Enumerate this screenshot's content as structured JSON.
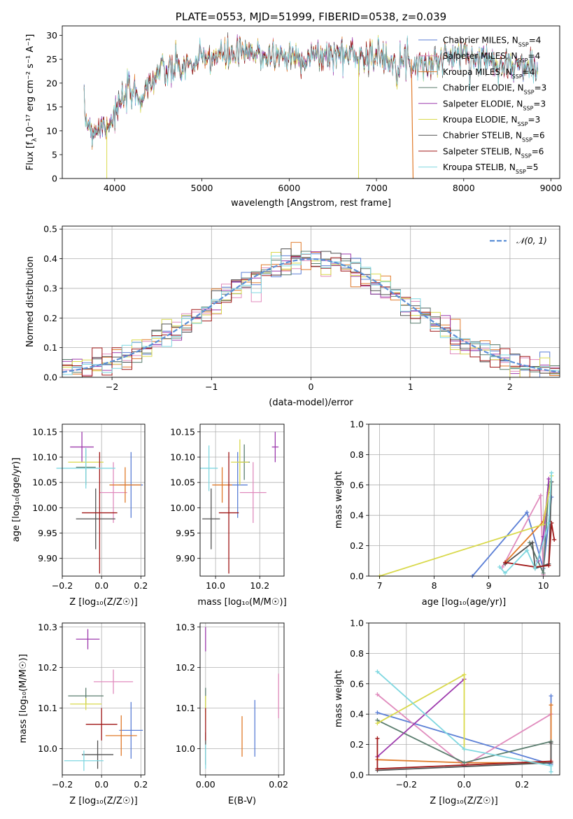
{
  "colors": [
    "#5b7fd6",
    "#e08bbd",
    "#e07a2a",
    "#5a7d6e",
    "#9d3aad",
    "#d9d94c",
    "#505050",
    "#a01818",
    "#7fd7e0"
  ],
  "spectrum": {
    "title": "PLATE=0553, MJD=51999, FIBERID=0538, z=0.039",
    "xlabel": "wavelength [Angstrom, rest frame]",
    "ylabel": "Flux [f",
    "ylabel_units": "10⁻¹⁷ erg cm⁻² s⁻¹ A⁻¹]",
    "legend": [
      "Chabrier MILES, N",
      "Salpeter MILES, N",
      "Kroupa MILES, N",
      "Chabrier ELODIE, N",
      "Salpeter ELODIE, N",
      "Kroupa ELODIE, N",
      "Chabrier STELIB, N",
      "Salpeter STELIB, N",
      "Kroupa STELIB, N"
    ],
    "legend_nssp": [
      "=4",
      "=4",
      "=4",
      "=3",
      "=3",
      "=3",
      "=6",
      "=6",
      "=5"
    ]
  },
  "residuals": {
    "xlabel": "(data-model)/error",
    "ylabel": "Normed distribution",
    "legend": "𝒩(0, 1)"
  },
  "panels": {
    "age_label": "age  [log₁₀(age/yr)]",
    "z_label": "Z [log₁₀(Z/Z☉)]",
    "mass_label": "mass [log₁₀(M/M☉)]",
    "mass_weight_label": "mass weight",
    "ebv_label": "E(B-V)"
  },
  "chart_data": [
    {
      "type": "line",
      "title": "PLATE=0553, MJD=51999, FIBERID=0538, z=0.039",
      "xlabel": "wavelength [Angstrom, rest frame]",
      "ylabel": "Flux [fλ 10^-17 erg cm^-2 s^-1 A^-1]",
      "xlim": [
        3400,
        9100
      ],
      "ylim": [
        0,
        32
      ],
      "xticks": [
        4000,
        5000,
        6000,
        7000,
        8000,
        9000
      ],
      "yticks": [
        0,
        5,
        10,
        15,
        20,
        25,
        30
      ],
      "continuum": [
        [
          3650,
          13
        ],
        [
          3750,
          10
        ],
        [
          3850,
          11
        ],
        [
          3950,
          12
        ],
        [
          4050,
          15
        ],
        [
          4150,
          18
        ],
        [
          4300,
          17
        ],
        [
          4400,
          20
        ],
        [
          4500,
          22
        ],
        [
          4700,
          23
        ],
        [
          4900,
          24
        ],
        [
          5100,
          25.5
        ],
        [
          5400,
          26
        ],
        [
          5700,
          26
        ],
        [
          6000,
          25.5
        ],
        [
          6300,
          25.5
        ],
        [
          6500,
          26
        ],
        [
          6800,
          26
        ],
        [
          7000,
          25.5
        ],
        [
          7200,
          25
        ],
        [
          7400,
          24.5
        ],
        [
          7600,
          24
        ],
        [
          7800,
          25.5
        ],
        [
          8000,
          26
        ],
        [
          8200,
          25
        ],
        [
          8400,
          24.5
        ],
        [
          8600,
          23.5
        ],
        [
          8800,
          23.5
        ]
      ],
      "legend_position": "top-right"
    },
    {
      "type": "histogram",
      "xlabel": "(data-model)/error",
      "ylabel": "Normed distribution",
      "xlim": [
        -2.5,
        2.5
      ],
      "ylim": [
        0,
        0.51
      ],
      "xticks": [
        -2,
        -1,
        0,
        1,
        2
      ],
      "yticks": [
        0,
        0.1,
        0.2,
        0.3,
        0.4,
        0.5
      ],
      "bin_width": 0.1,
      "reference_curve": "N(0,1)",
      "legend_position": "top-right"
    },
    {
      "type": "scatter",
      "xlabel": "Z [log10(Z/Zsun)]",
      "ylabel": "age [log10(age/yr)]",
      "xlim": [
        -0.2,
        0.22
      ],
      "ylim": [
        9.865,
        10.165
      ],
      "xticks": [
        -0.2,
        0.0,
        0.2
      ],
      "yticks": [
        9.9,
        9.95,
        10.0,
        10.05,
        10.1,
        10.15
      ],
      "points": [
        {
          "x": 0.15,
          "y": 10.045,
          "xerr": 0.06,
          "yerr": 0.065
        },
        {
          "x": 0.06,
          "y": 10.03,
          "xerr": 0.07,
          "yerr": 0.06
        },
        {
          "x": 0.12,
          "y": 10.045,
          "xerr": 0.08,
          "yerr": 0.035
        },
        {
          "x": -0.08,
          "y": 10.08,
          "xerr": 0.05,
          "yerr": 0.035
        },
        {
          "x": -0.1,
          "y": 10.12,
          "xerr": 0.06,
          "yerr": 0.03
        },
        {
          "x": -0.08,
          "y": 10.09,
          "xerr": 0.09,
          "yerr": 0.01
        },
        {
          "x": -0.03,
          "y": 9.978,
          "xerr": 0.1,
          "yerr": 0.06
        },
        {
          "x": -0.01,
          "y": 9.99,
          "xerr": 0.09,
          "yerr": 0.12
        },
        {
          "x": -0.08,
          "y": 10.078,
          "xerr": 0.15,
          "yerr": 0.04
        }
      ]
    },
    {
      "type": "scatter",
      "xlabel": "mass [log10(M/Msun)]",
      "ylabel": "",
      "xlim": [
        9.93,
        10.31
      ],
      "ylim": [
        9.865,
        10.165
      ],
      "xticks": [
        10.0,
        10.2
      ],
      "points": [
        {
          "x": 10.1,
          "y": 10.045,
          "xerr": 0.045,
          "yerr": 0.065
        },
        {
          "x": 10.17,
          "y": 10.03,
          "xerr": 0.06,
          "yerr": 0.06
        },
        {
          "x": 10.03,
          "y": 10.045,
          "xerr": 0.045,
          "yerr": 0.035
        },
        {
          "x": 10.13,
          "y": 10.09,
          "xerr": 0.025,
          "yerr": 0.035
        },
        {
          "x": 10.27,
          "y": 10.12,
          "xerr": 0.015,
          "yerr": 0.03
        },
        {
          "x": 10.11,
          "y": 10.09,
          "xerr": 0.04,
          "yerr": 0.045
        },
        {
          "x": 9.98,
          "y": 9.978,
          "xerr": 0.04,
          "yerr": 0.06
        },
        {
          "x": 10.06,
          "y": 9.99,
          "xerr": 0.045,
          "yerr": 0.12
        },
        {
          "x": 9.97,
          "y": 10.078,
          "xerr": 0.04,
          "yerr": 0.045
        }
      ]
    },
    {
      "type": "line",
      "xlabel": "age [log10(age/yr)]",
      "ylabel": "mass weight",
      "xlim": [
        6.8,
        10.3
      ],
      "ylim": [
        0,
        1.0
      ],
      "xticks": [
        7,
        8,
        9,
        10
      ],
      "yticks": [
        0,
        0.2,
        0.4,
        0.6,
        0.8,
        1.0
      ],
      "series": [
        {
          "x": [
            8.7,
            9.7,
            10.0,
            10.15
          ],
          "y": [
            0.0,
            0.42,
            0.05,
            0.52
          ]
        },
        {
          "x": [
            9.25,
            9.95,
            10.0,
            10.05
          ],
          "y": [
            0.06,
            0.53,
            0.01,
            0.4
          ]
        },
        {
          "x": [
            9.3,
            10.0,
            10.1
          ],
          "y": [
            0.09,
            0.36,
            0.55
          ]
        },
        {
          "x": [
            9.75,
            10.0,
            10.1
          ],
          "y": [
            0.22,
            0.02,
            0.6
          ]
        },
        {
          "x": [
            9.9,
            10.0,
            10.1
          ],
          "y": [
            0.1,
            0.26,
            0.64
          ]
        },
        {
          "x": [
            7.0,
            10.0,
            10.15
          ],
          "y": [
            0.0,
            0.34,
            0.66
          ]
        },
        {
          "x": [
            9.3,
            9.8,
            9.85,
            10.1,
            10.15
          ],
          "y": [
            0.08,
            0.22,
            0.05,
            0.08,
            0.62
          ]
        },
        {
          "x": [
            9.3,
            9.85,
            10.1,
            10.15,
            10.2
          ],
          "y": [
            0.09,
            0.06,
            0.07,
            0.35,
            0.24
          ]
        },
        {
          "x": [
            9.2,
            9.3,
            9.7,
            9.85,
            10.1,
            10.15
          ],
          "y": [
            0.06,
            0.02,
            0.17,
            0.05,
            0.35,
            0.68
          ]
        }
      ]
    },
    {
      "type": "scatter",
      "xlabel": "Z [log10(Z/Zsun)]",
      "ylabel": "mass [log10(M/Msun)]",
      "xlim": [
        -0.2,
        0.22
      ],
      "ylim": [
        9.935,
        10.31
      ],
      "xticks": [
        -0.2,
        0.0,
        0.2
      ],
      "yticks": [
        10.0,
        10.1,
        10.2,
        10.3
      ],
      "points": [
        {
          "x": 0.15,
          "y": 10.045,
          "xerr": 0.06,
          "yerr": 0.07
        },
        {
          "x": 0.06,
          "y": 10.165,
          "xerr": 0.1,
          "yerr": 0.03
        },
        {
          "x": 0.1,
          "y": 10.032,
          "xerr": 0.08,
          "yerr": 0.05
        },
        {
          "x": -0.08,
          "y": 10.13,
          "xerr": 0.09,
          "yerr": 0.02
        },
        {
          "x": -0.07,
          "y": 10.27,
          "xerr": 0.06,
          "yerr": 0.025
        },
        {
          "x": -0.08,
          "y": 10.11,
          "xerr": 0.08,
          "yerr": 0.015
        },
        {
          "x": -0.02,
          "y": 9.985,
          "xerr": 0.08,
          "yerr": 0.035
        },
        {
          "x": -0.0,
          "y": 10.06,
          "xerr": 0.08,
          "yerr": 0.04
        },
        {
          "x": -0.09,
          "y": 9.97,
          "xerr": 0.1,
          "yerr": 0.025
        }
      ]
    },
    {
      "type": "scatter",
      "xlabel": "E(B-V)",
      "ylabel": "",
      "xlim": [
        -0.0015,
        0.0215
      ],
      "ylim": [
        9.935,
        10.31
      ],
      "xticks": [
        0.0,
        0.02
      ],
      "points": [
        {
          "x": 0.0135,
          "y": 10.05,
          "xerr": 0,
          "yerr": 0.07
        },
        {
          "x": 0.02,
          "y": 10.13,
          "xerr": 0,
          "yerr": 0.055
        },
        {
          "x": 0.01,
          "y": 10.03,
          "xerr": 0,
          "yerr": 0.05
        },
        {
          "x": 0.0,
          "y": 10.12,
          "xerr": 0,
          "yerr": 0.03
        },
        {
          "x": 0.0,
          "y": 10.27,
          "xerr": 0,
          "yerr": 0.03
        },
        {
          "x": 0.0,
          "y": 10.1,
          "xerr": 0,
          "yerr": 0.03
        },
        {
          "x": 0.0,
          "y": 10.0,
          "xerr": 0,
          "yerr": 0.04
        },
        {
          "x": 0.0,
          "y": 10.06,
          "xerr": 0,
          "yerr": 0.04
        },
        {
          "x": 0.0,
          "y": 9.98,
          "xerr": 0,
          "yerr": 0.03
        }
      ]
    },
    {
      "type": "line",
      "xlabel": "Z [log10(Z/Zsun)]",
      "ylabel": "mass weight",
      "xlim": [
        -0.33,
        0.33
      ],
      "ylim": [
        0,
        1.0
      ],
      "xticks": [
        -0.2,
        0.0,
        0.2
      ],
      "yticks": [
        0,
        0.2,
        0.4,
        0.6,
        0.8,
        1.0
      ],
      "series": [
        {
          "x": [
            -0.3,
            0.3,
            0.3
          ],
          "y": [
            0.41,
            0.07,
            0.52
          ]
        },
        {
          "x": [
            -0.3,
            0.0,
            0.3
          ],
          "y": [
            0.53,
            0.06,
            0.4
          ]
        },
        {
          "x": [
            -0.3,
            0.0,
            0.3,
            0.3
          ],
          "y": [
            0.1,
            0.08,
            0.08,
            0.46
          ]
        },
        {
          "x": [
            -0.3,
            0.0,
            0.3
          ],
          "y": [
            0.36,
            0.08,
            0.22
          ]
        },
        {
          "x": [
            -0.3,
            0.0
          ],
          "y": [
            0.12,
            0.63
          ]
        },
        {
          "x": [
            -0.3,
            0.0,
            0.0
          ],
          "y": [
            0.34,
            0.66,
            0.17
          ]
        },
        {
          "x": [
            -0.3,
            0.3,
            0.3
          ],
          "y": [
            0.03,
            0.08,
            0.21
          ]
        },
        {
          "x": [
            -0.3,
            -0.3,
            0.3
          ],
          "y": [
            0.24,
            0.04,
            0.09
          ]
        },
        {
          "x": [
            -0.3,
            0.0,
            0.3,
            0.3
          ],
          "y": [
            0.68,
            0.17,
            0.06,
            0.02
          ]
        }
      ]
    }
  ]
}
